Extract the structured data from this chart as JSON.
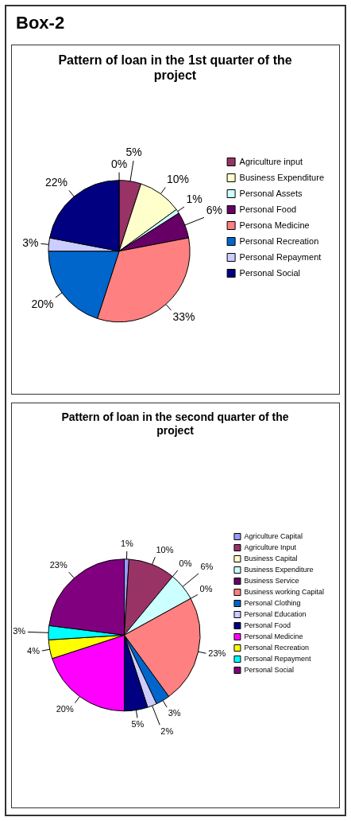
{
  "chart_data": [
    {
      "type": "pie",
      "title": "Pattern of loan in the 1st quarter of the project",
      "annotations": [
        "Box-2"
      ],
      "legend": "right",
      "categories": [
        null,
        "Agriculture input",
        "Business Expenditure",
        "Personal Assets",
        "Personal Food",
        "Persona Medicine",
        "Personal Recreation",
        "Personal Repayment",
        "Personal Social"
      ],
      "values": [
        0,
        5,
        10,
        1,
        6,
        33,
        20,
        3,
        22
      ],
      "value_labels": [
        "0%",
        "5%",
        "10%",
        "1%",
        "6%",
        "33%",
        "20%",
        "3%",
        "22%"
      ],
      "colors": [
        "#9999ff",
        "#993366",
        "#ffffcc",
        "#ccffff",
        "#660066",
        "#ff8080",
        "#0066cc",
        "#ccccff",
        "#000080"
      ]
    },
    {
      "type": "pie",
      "title": "Pattern of loan in the second quarter of the project",
      "legend": "right",
      "categories": [
        "Agriculture Capital",
        "Agriculture Input",
        "Business Capital",
        "Business Expenditure",
        "Business Service",
        "Business working Capital",
        "Personal Clothing",
        "Personal Education",
        "Personal Food",
        "Personal Medicine",
        "Personal Recreation",
        "Personal Repayment",
        "Personal Social"
      ],
      "values": [
        1,
        10,
        0,
        6,
        0,
        23,
        3,
        2,
        5,
        20,
        4,
        3,
        23
      ],
      "value_labels": [
        "1%",
        "10%",
        "0%",
        "6%",
        "0%",
        "23%",
        "3%",
        "2%",
        "5%",
        "20%",
        "4%",
        "3%",
        "23%"
      ],
      "colors": [
        "#9999ff",
        "#993366",
        "#ffffcc",
        "#ccffff",
        "#660066",
        "#ff8080",
        "#0066cc",
        "#ccccff",
        "#000080",
        "#ff00ff",
        "#ffff00",
        "#00ffff",
        "#800080"
      ]
    }
  ]
}
